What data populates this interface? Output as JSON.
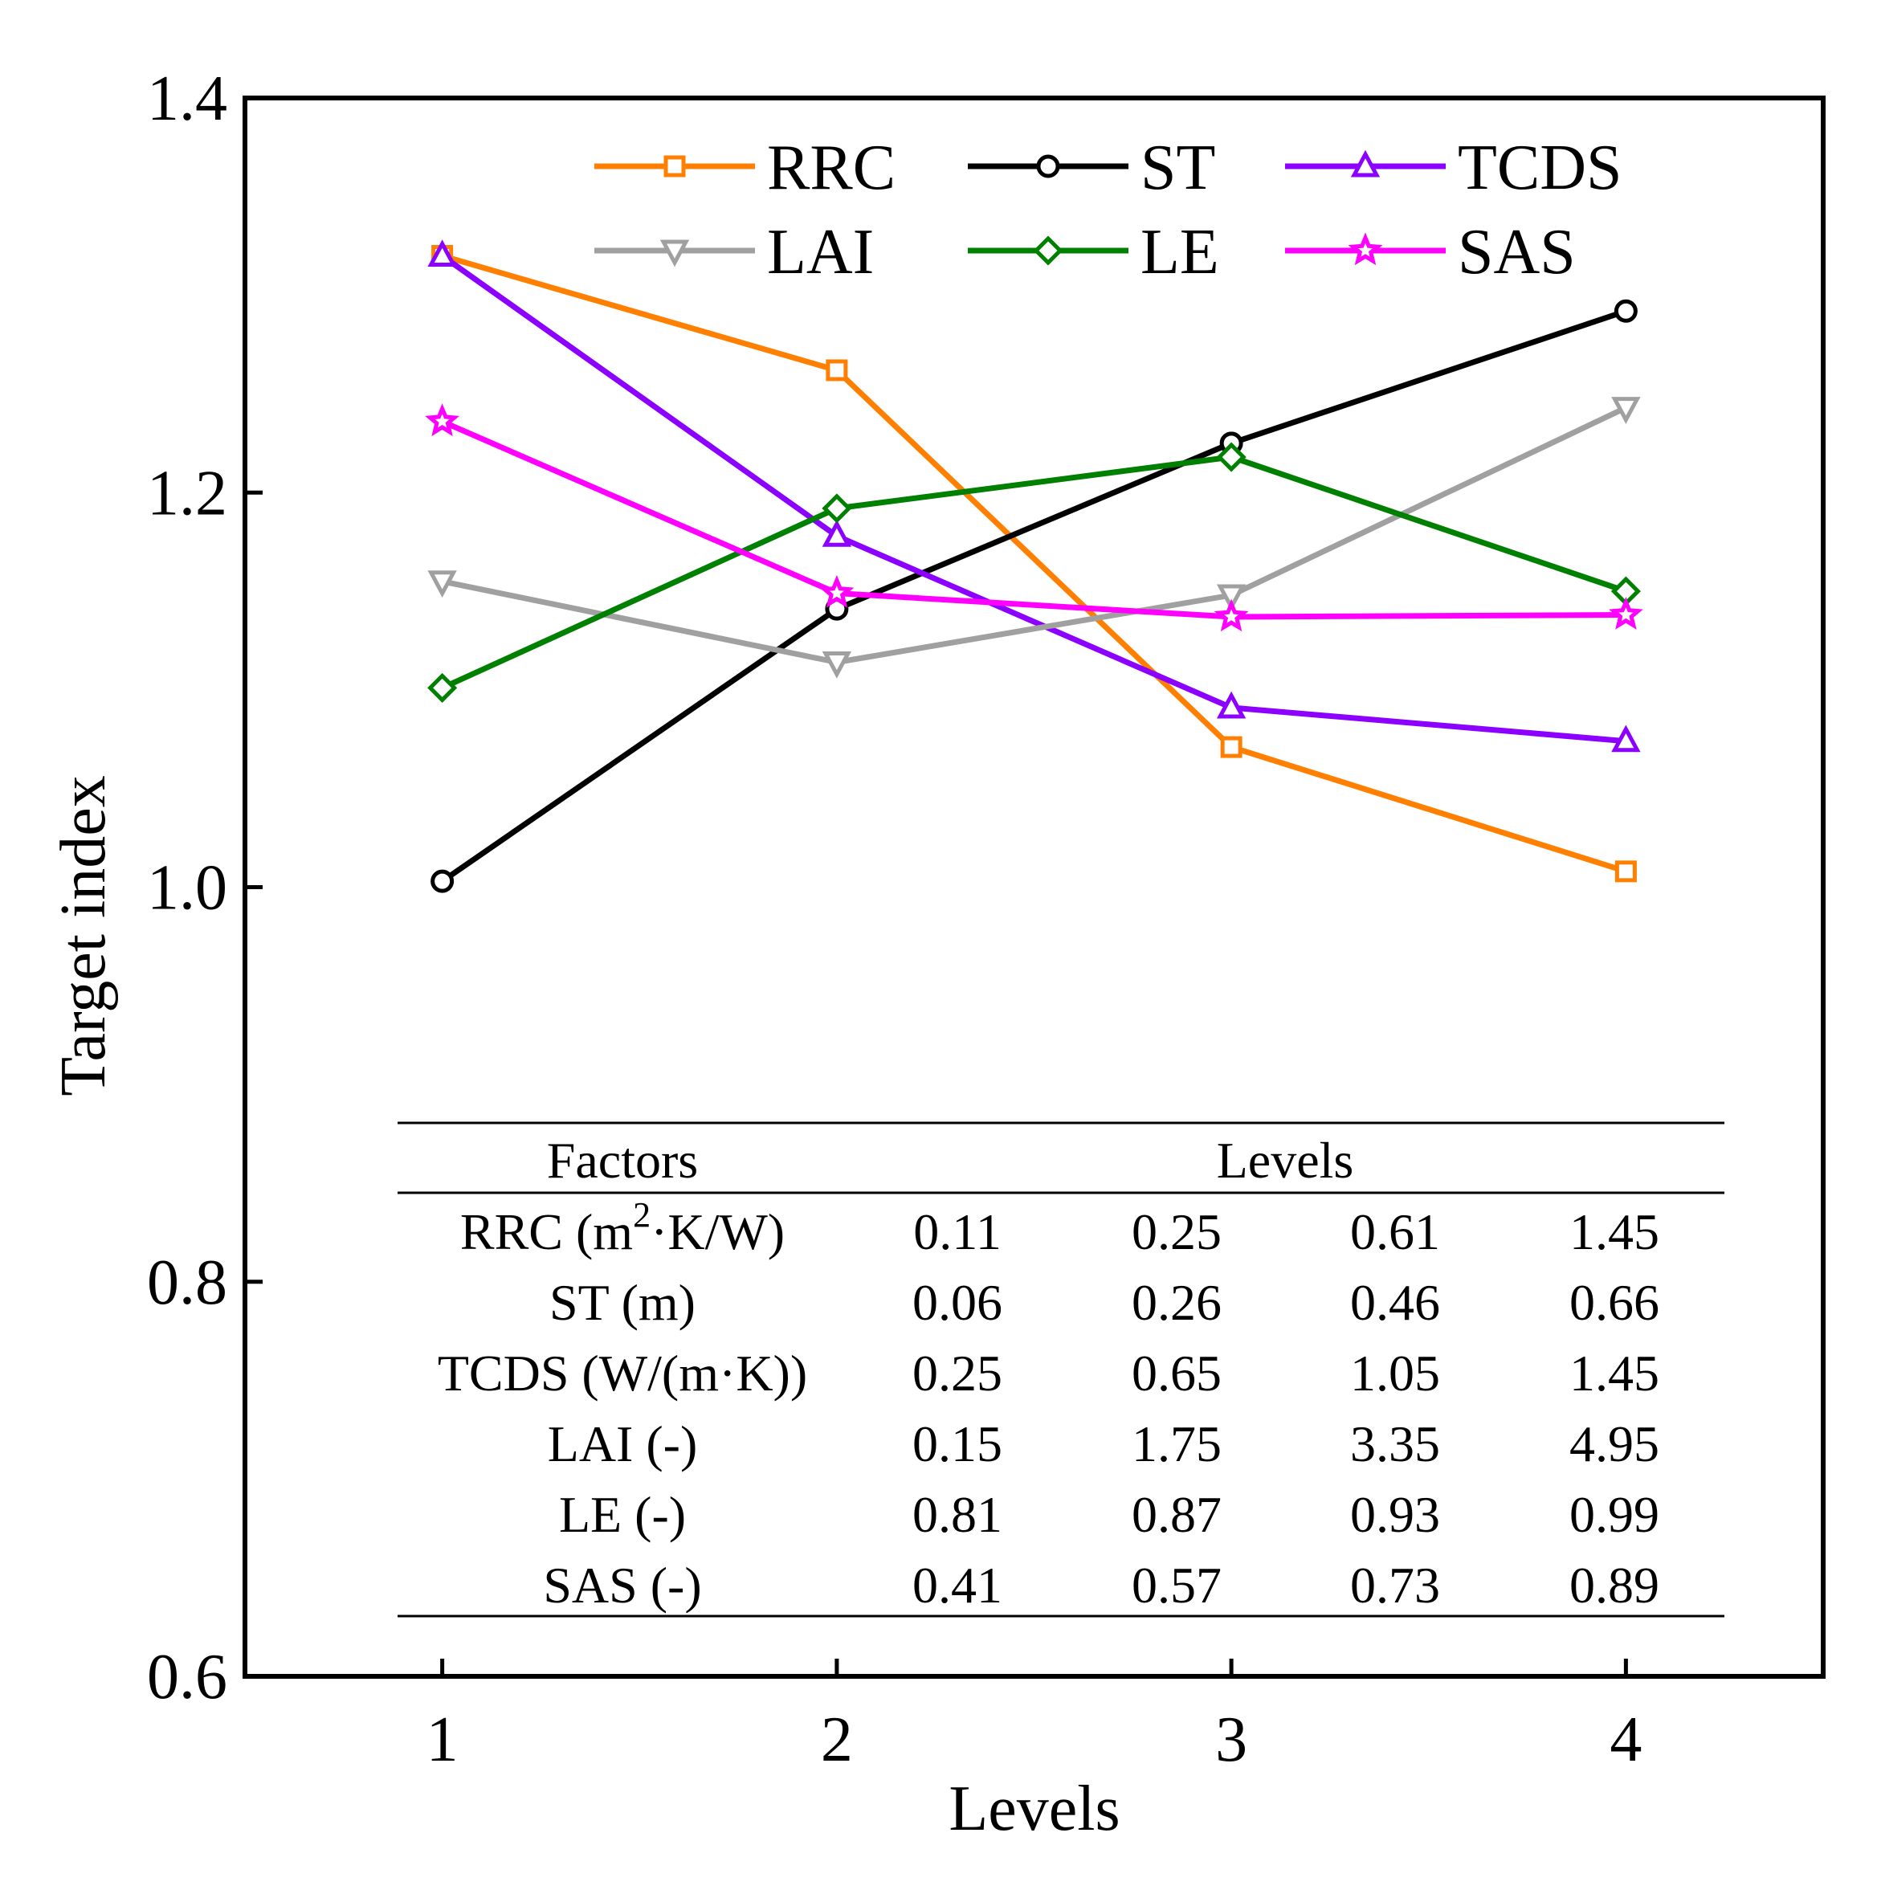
{
  "chart_data": {
    "type": "line",
    "xlabel": "Levels",
    "ylabel": "Target index",
    "x": [
      1,
      2,
      3,
      4
    ],
    "xlim": [
      0.5,
      4.5
    ],
    "ylim": [
      0.6,
      1.4
    ],
    "xticks": [
      "1",
      "2",
      "3",
      "4"
    ],
    "yticks": [
      "0.6",
      "0.8",
      "1.0",
      "1.2",
      "1.4"
    ],
    "grid": false,
    "legend_position": "top",
    "series": [
      {
        "name": "RRC",
        "color": "#FF7F00",
        "marker": "square",
        "values": [
          1.32,
          1.262,
          1.071,
          1.008
        ]
      },
      {
        "name": "ST",
        "color": "#000000",
        "marker": "circle",
        "values": [
          1.003,
          1.141,
          1.225,
          1.292
        ]
      },
      {
        "name": "TCDS",
        "color": "#8B00FF",
        "marker": "triangle-up",
        "values": [
          1.32,
          1.178,
          1.091,
          1.074
        ]
      },
      {
        "name": "LAI",
        "color": "#A0A0A0",
        "marker": "triangle-down",
        "values": [
          1.155,
          1.114,
          1.148,
          1.243
        ]
      },
      {
        "name": "LE",
        "color": "#008000",
        "marker": "diamond",
        "values": [
          1.101,
          1.192,
          1.218,
          1.15
        ]
      },
      {
        "name": "SAS",
        "color": "#FF00FF",
        "marker": "star",
        "values": [
          1.236,
          1.149,
          1.137,
          1.138
        ]
      }
    ],
    "table": {
      "header_factors": "Factors",
      "header_levels": "Levels",
      "rows": [
        {
          "factor": "RRC (m",
          "sup": "2",
          "factor_tail": "·K/W)",
          "values": [
            "0.11",
            "0.25",
            "0.61",
            "1.45"
          ]
        },
        {
          "factor": "ST (m)",
          "sup": "",
          "factor_tail": "",
          "values": [
            "0.06",
            "0.26",
            "0.46",
            "0.66"
          ]
        },
        {
          "factor": "TCDS (W/(m·K))",
          "sup": "",
          "factor_tail": "",
          "values": [
            "0.25",
            "0.65",
            "1.05",
            "1.45"
          ]
        },
        {
          "factor": "LAI (-)",
          "sup": "",
          "factor_tail": "",
          "values": [
            "0.15",
            "1.75",
            "3.35",
            "4.95"
          ]
        },
        {
          "factor": "LE (-)",
          "sup": "",
          "factor_tail": "",
          "values": [
            "0.81",
            "0.87",
            "0.93",
            "0.99"
          ]
        },
        {
          "factor": "SAS (-)",
          "sup": "",
          "factor_tail": "",
          "values": [
            "0.41",
            "0.57",
            "0.73",
            "0.89"
          ]
        }
      ]
    }
  }
}
